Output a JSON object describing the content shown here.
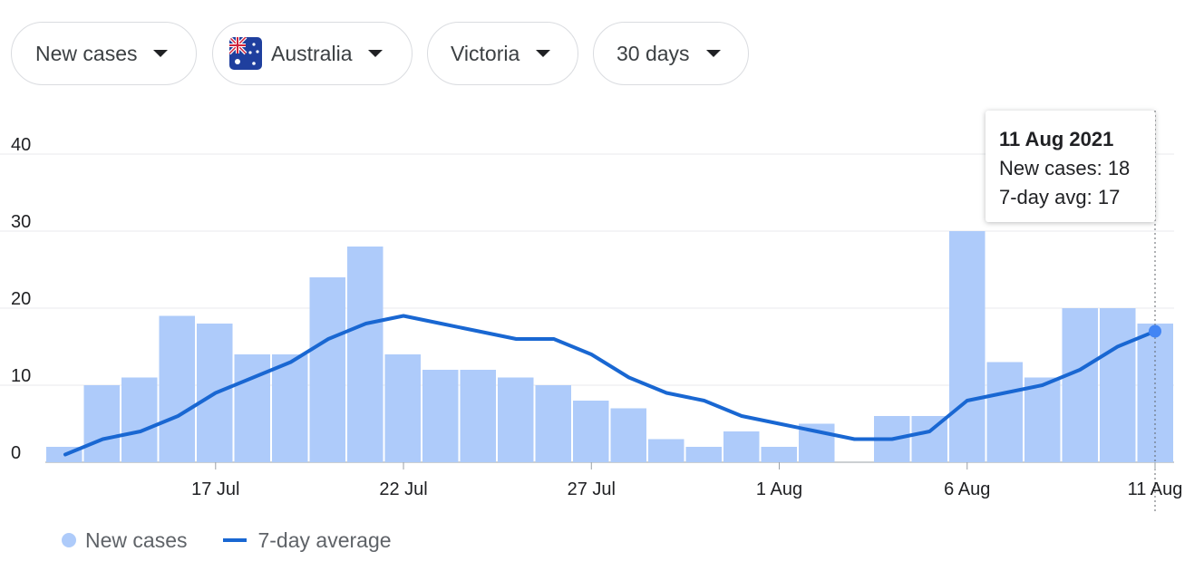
{
  "filters": [
    {
      "label": "New cases",
      "icon": null
    },
    {
      "label": "Australia",
      "icon": "australia-flag-icon"
    },
    {
      "label": "Victoria",
      "icon": null
    },
    {
      "label": "30 days",
      "icon": null
    }
  ],
  "tooltip": {
    "date": "11 Aug 2021",
    "cases_text": "New cases: 18",
    "avg_text": "7-day avg: 17"
  },
  "legend": {
    "cases_label": "New cases",
    "avg_label": "7-day average"
  },
  "colors": {
    "bar": "#aecbfa",
    "line": "#1967d2",
    "highlight_dot": "#4285f4",
    "grid": "#e8eaed"
  },
  "chart_data": {
    "type": "bar",
    "title": "",
    "xlabel": "",
    "ylabel": "",
    "ylim": [
      0,
      40
    ],
    "yticks": [
      0,
      10,
      20,
      30,
      40
    ],
    "grid": true,
    "legend_position": "bottom-left",
    "categories": [
      "13 Jul",
      "14 Jul",
      "15 Jul",
      "16 Jul",
      "17 Jul",
      "18 Jul",
      "19 Jul",
      "20 Jul",
      "21 Jul",
      "22 Jul",
      "23 Jul",
      "24 Jul",
      "25 Jul",
      "26 Jul",
      "27 Jul",
      "28 Jul",
      "29 Jul",
      "30 Jul",
      "31 Jul",
      "1 Aug",
      "2 Aug",
      "3 Aug",
      "4 Aug",
      "5 Aug",
      "6 Aug",
      "7 Aug",
      "8 Aug",
      "9 Aug",
      "10 Aug",
      "11 Aug"
    ],
    "xtick_labels": [
      {
        "index": 4,
        "label": "17 Jul"
      },
      {
        "index": 9,
        "label": "22 Jul"
      },
      {
        "index": 14,
        "label": "27 Jul"
      },
      {
        "index": 19,
        "label": "1 Aug"
      },
      {
        "index": 24,
        "label": "6 Aug"
      },
      {
        "index": 29,
        "label": "11 Aug"
      }
    ],
    "series": [
      {
        "name": "New cases",
        "type": "bar",
        "values": [
          2,
          10,
          11,
          19,
          18,
          14,
          14,
          24,
          28,
          14,
          12,
          12,
          11,
          10,
          8,
          7,
          3,
          2,
          4,
          2,
          5,
          0,
          6,
          6,
          30,
          13,
          11,
          20,
          20,
          18
        ]
      },
      {
        "name": "7-day average",
        "type": "line",
        "values": [
          1,
          3,
          4,
          6,
          9,
          11,
          13,
          16,
          18,
          19,
          18,
          17,
          16,
          16,
          14,
          11,
          9,
          8,
          6,
          5,
          4,
          3,
          3,
          4,
          8,
          9,
          10,
          12,
          15,
          17
        ]
      }
    ],
    "highlight_index": 29
  }
}
